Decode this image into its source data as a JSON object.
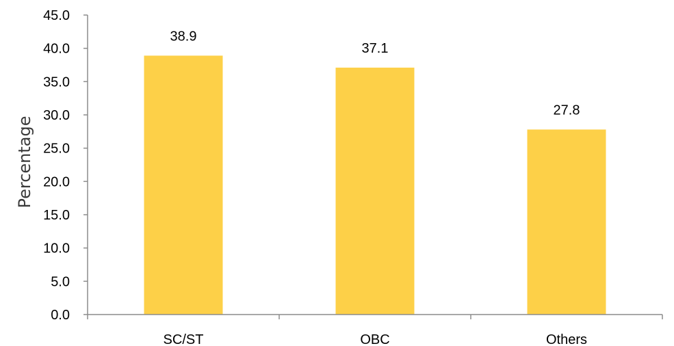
{
  "chart_data": {
    "type": "bar",
    "categories": [
      "SC/ST",
      "OBC",
      "Others"
    ],
    "values": [
      38.9,
      37.1,
      27.8
    ],
    "value_labels": [
      "38.9",
      "37.1",
      "27.8"
    ],
    "title": "",
    "xlabel": "",
    "ylabel": "Percentage",
    "ylim": [
      0,
      45
    ],
    "yticks": [
      "0.0",
      "5.0",
      "10.0",
      "15.0",
      "20.0",
      "25.0",
      "30.0",
      "35.0",
      "40.0",
      "45.0"
    ],
    "grid": false,
    "legend": "none",
    "bar_color": "#FDD048"
  }
}
